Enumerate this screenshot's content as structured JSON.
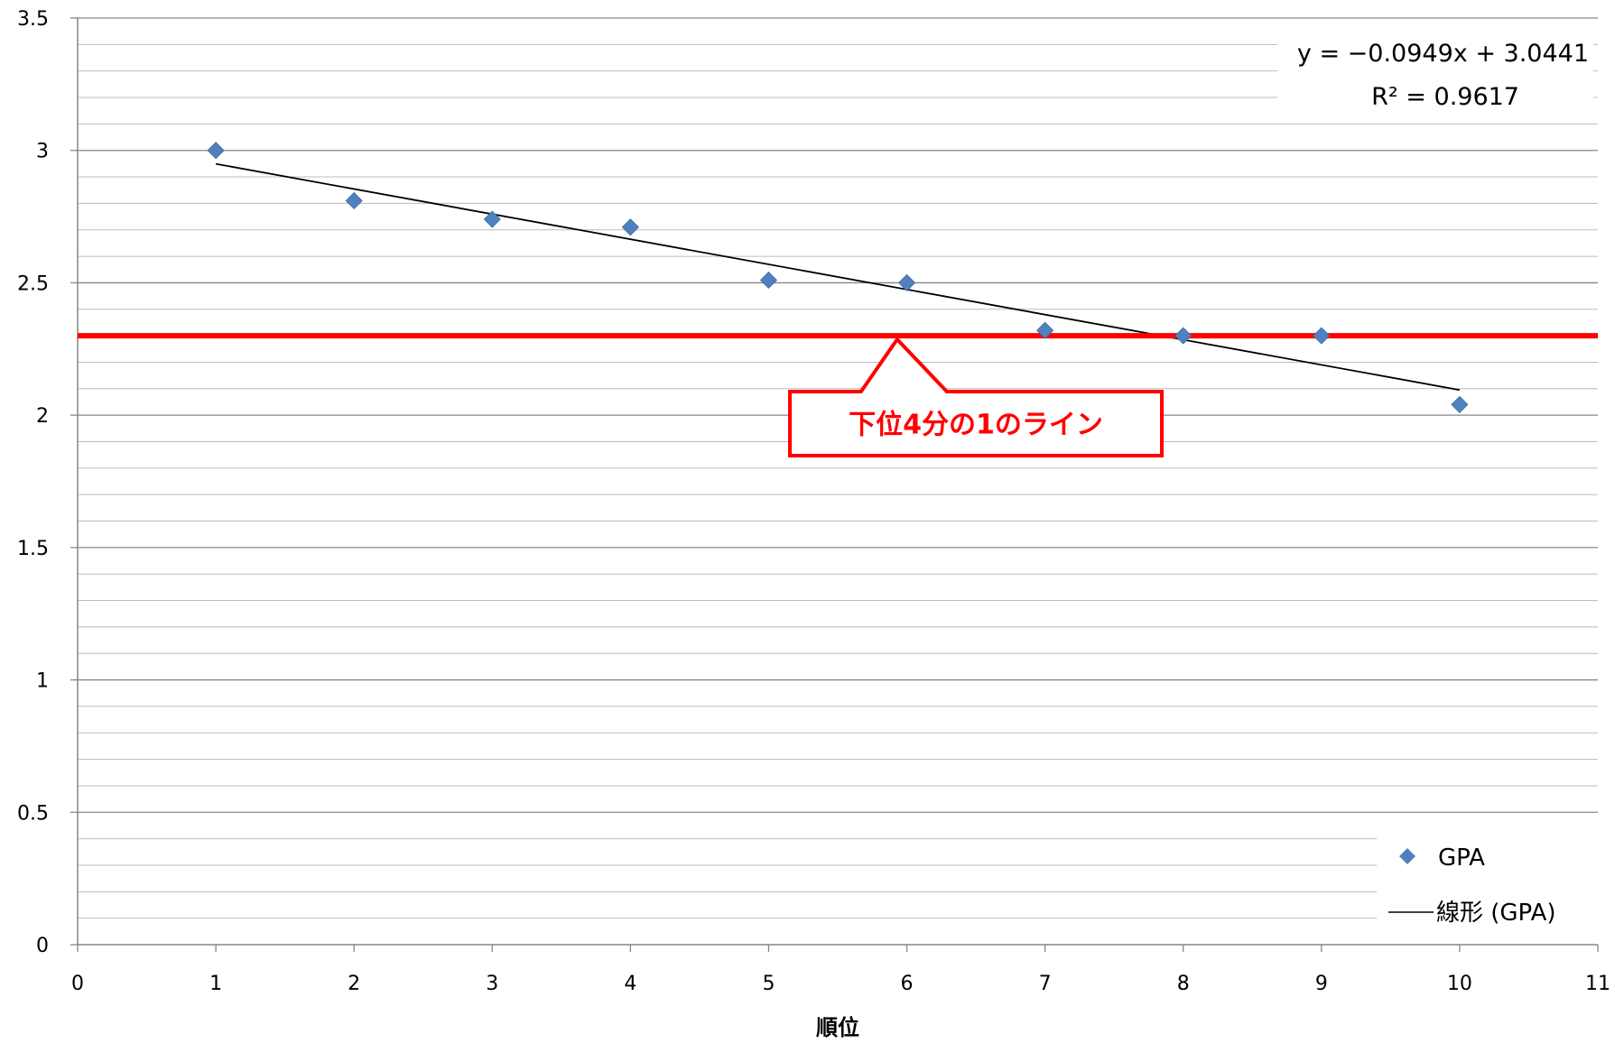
{
  "chart_data": {
    "type": "scatter",
    "xlabel": "順位",
    "ylabel": "",
    "xlim": [
      0,
      11
    ],
    "ylim": [
      0,
      3.5
    ],
    "x_ticks": [
      "0",
      "1",
      "2",
      "3",
      "4",
      "5",
      "6",
      "7",
      "8",
      "9",
      "10",
      "11"
    ],
    "y_ticks": [
      "0",
      "0.5",
      "1",
      "1.5",
      "2",
      "2.5",
      "3",
      "3.5"
    ],
    "grid": true,
    "series": [
      {
        "name": "GPA",
        "marker": "diamond",
        "color": "#4f81bd",
        "x": [
          1,
          2,
          3,
          4,
          5,
          6,
          7,
          8,
          9,
          10
        ],
        "y": [
          3.0,
          2.81,
          2.74,
          2.71,
          2.51,
          2.5,
          2.32,
          2.3,
          2.3,
          2.04
        ]
      }
    ],
    "trendline": {
      "name": "線形 (GPA)",
      "type": "linear",
      "slope": -0.0949,
      "intercept": 3.0441,
      "x_range": [
        1,
        10
      ],
      "color": "#000000",
      "equation_label": "y = −0.0949x + 3.0441",
      "r2_label": "R² = 0.9617"
    },
    "reference_line": {
      "y": 2.3,
      "color": "#ff0000",
      "label": "下位4分の1のライン",
      "callout_x": 5.93
    },
    "legend": {
      "placement": "bottom-right",
      "entries": [
        "GPA",
        "線形 (GPA)"
      ]
    }
  }
}
